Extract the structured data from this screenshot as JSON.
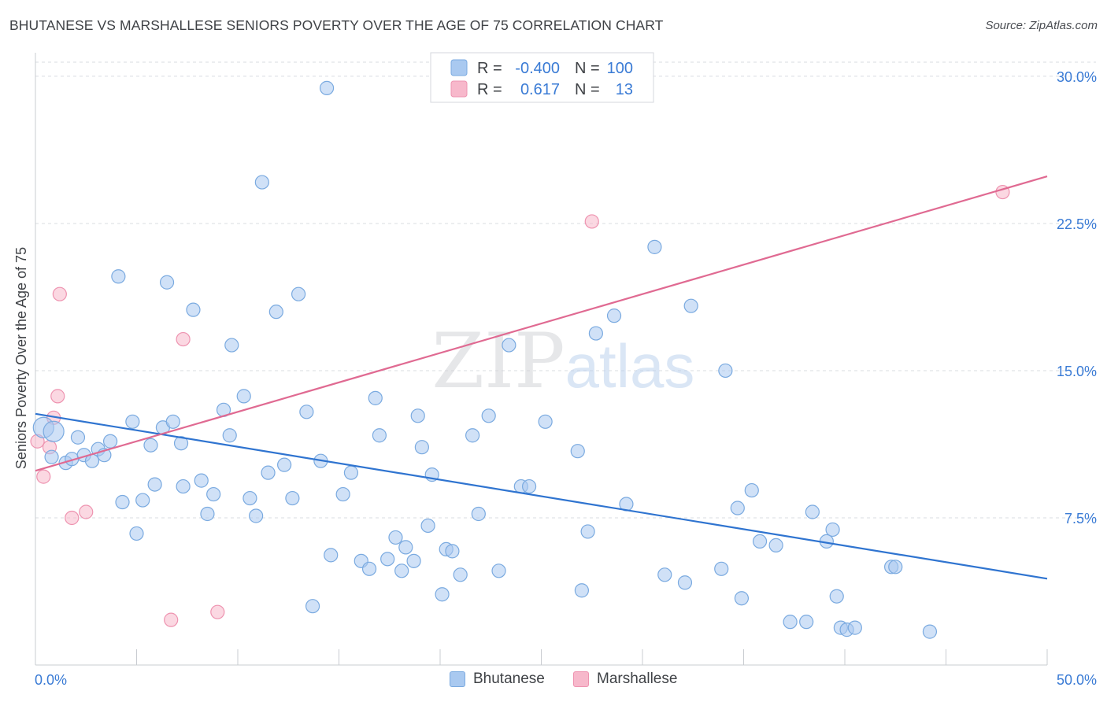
{
  "title": "BHUTANESE VS MARSHALLESE SENIORS POVERTY OVER THE AGE OF 75 CORRELATION CHART",
  "source": "Source: ZipAtlas.com",
  "watermark": {
    "part1": "ZIP",
    "part2": "atlas"
  },
  "colors": {
    "blue_fill": "#a9c9f0",
    "blue_stroke": "#7aaae0",
    "blue_line": "#2f74d0",
    "pink_fill": "#f7b8cb",
    "pink_stroke": "#ee93b0",
    "pink_line": "#e06a92",
    "tick_text": "#3a7bd5",
    "grid": "#d9dce1"
  },
  "stats_legend": {
    "r_label": "R =",
    "n_label": "N =",
    "rows": [
      {
        "series": "Bhutanese",
        "r": "-0.400",
        "n": "100"
      },
      {
        "series": "Marshallese",
        "r": "0.617",
        "n": "13"
      }
    ]
  },
  "chart_data": {
    "type": "scatter",
    "title": "BHUTANESE VS MARSHALLESE SENIORS POVERTY OVER THE AGE OF 75 CORRELATION CHART",
    "xlabel": "",
    "ylabel": "Seniors Poverty Over the Age of 75",
    "xlim": [
      0,
      50
    ],
    "ylim": [
      0,
      31.2
    ],
    "x_tick_labels": [
      "0.0%",
      "50.0%"
    ],
    "y_ticks": [
      7.5,
      15.0,
      22.5,
      30.0
    ],
    "y_tick_labels": [
      "7.5%",
      "15.0%",
      "22.5%",
      "30.0%"
    ],
    "grid": "horizontal dashed",
    "legend": "bottom-center",
    "series": [
      {
        "name": "Bhutanese",
        "trend": {
          "x": [
            0,
            50
          ],
          "y": [
            12.8,
            4.4
          ]
        },
        "points": [
          [
            0.4,
            12.1
          ],
          [
            0.9,
            11.9
          ],
          [
            0.8,
            10.6
          ],
          [
            1.5,
            10.3
          ],
          [
            1.8,
            10.5
          ],
          [
            2.1,
            11.6
          ],
          [
            2.4,
            10.7
          ],
          [
            2.8,
            10.4
          ],
          [
            3.1,
            11.0
          ],
          [
            3.4,
            10.7
          ],
          [
            3.7,
            11.4
          ],
          [
            4.1,
            19.8
          ],
          [
            4.3,
            8.3
          ],
          [
            4.8,
            12.4
          ],
          [
            5.0,
            6.7
          ],
          [
            5.3,
            8.4
          ],
          [
            5.7,
            11.2
          ],
          [
            5.9,
            9.2
          ],
          [
            6.3,
            12.1
          ],
          [
            6.5,
            19.5
          ],
          [
            6.8,
            12.4
          ],
          [
            7.2,
            11.3
          ],
          [
            7.3,
            9.1
          ],
          [
            7.8,
            18.1
          ],
          [
            8.2,
            9.4
          ],
          [
            8.5,
            7.7
          ],
          [
            8.8,
            8.7
          ],
          [
            9.3,
            13.0
          ],
          [
            9.6,
            11.7
          ],
          [
            9.7,
            16.3
          ],
          [
            10.3,
            13.7
          ],
          [
            10.6,
            8.5
          ],
          [
            10.9,
            7.6
          ],
          [
            11.2,
            24.6
          ],
          [
            11.5,
            9.8
          ],
          [
            11.9,
            18.0
          ],
          [
            12.3,
            10.2
          ],
          [
            12.7,
            8.5
          ],
          [
            13.0,
            18.9
          ],
          [
            13.4,
            12.9
          ],
          [
            13.7,
            3.0
          ],
          [
            14.1,
            10.4
          ],
          [
            14.4,
            29.4
          ],
          [
            14.6,
            5.6
          ],
          [
            15.2,
            8.7
          ],
          [
            15.6,
            9.8
          ],
          [
            16.1,
            5.3
          ],
          [
            16.5,
            4.9
          ],
          [
            16.8,
            13.6
          ],
          [
            17.0,
            11.7
          ],
          [
            17.4,
            5.4
          ],
          [
            17.8,
            6.5
          ],
          [
            18.1,
            4.8
          ],
          [
            18.3,
            6.0
          ],
          [
            18.7,
            5.3
          ],
          [
            18.9,
            12.7
          ],
          [
            19.1,
            11.1
          ],
          [
            19.4,
            7.1
          ],
          [
            19.6,
            9.7
          ],
          [
            20.1,
            3.6
          ],
          [
            20.3,
            5.9
          ],
          [
            20.6,
            5.8
          ],
          [
            21.0,
            4.6
          ],
          [
            21.6,
            11.7
          ],
          [
            21.9,
            7.7
          ],
          [
            22.4,
            12.7
          ],
          [
            22.9,
            4.8
          ],
          [
            23.4,
            16.3
          ],
          [
            24.0,
            9.1
          ],
          [
            24.4,
            9.1
          ],
          [
            25.2,
            12.4
          ],
          [
            26.8,
            10.9
          ],
          [
            27.0,
            3.8
          ],
          [
            27.3,
            6.8
          ],
          [
            27.7,
            16.9
          ],
          [
            28.6,
            17.8
          ],
          [
            29.2,
            8.2
          ],
          [
            30.6,
            21.3
          ],
          [
            31.1,
            4.6
          ],
          [
            32.1,
            4.2
          ],
          [
            32.4,
            18.3
          ],
          [
            33.9,
            4.9
          ],
          [
            34.1,
            15.0
          ],
          [
            34.7,
            8.0
          ],
          [
            34.9,
            3.4
          ],
          [
            35.4,
            8.9
          ],
          [
            35.8,
            6.3
          ],
          [
            36.6,
            6.1
          ],
          [
            37.3,
            2.2
          ],
          [
            38.1,
            2.2
          ],
          [
            38.4,
            7.8
          ],
          [
            39.1,
            6.3
          ],
          [
            39.4,
            6.9
          ],
          [
            39.6,
            3.5
          ],
          [
            39.8,
            1.9
          ],
          [
            40.1,
            1.8
          ],
          [
            40.5,
            1.9
          ],
          [
            42.3,
            5.0
          ],
          [
            42.5,
            5.0
          ],
          [
            44.2,
            1.7
          ]
        ]
      },
      {
        "name": "Marshallese",
        "trend": {
          "x": [
            0,
            50
          ],
          "y": [
            9.9,
            24.9
          ]
        },
        "points": [
          [
            0.1,
            11.4
          ],
          [
            0.4,
            9.6
          ],
          [
            0.7,
            11.1
          ],
          [
            0.9,
            12.6
          ],
          [
            1.1,
            13.7
          ],
          [
            1.2,
            18.9
          ],
          [
            1.8,
            7.5
          ],
          [
            2.5,
            7.8
          ],
          [
            6.7,
            2.3
          ],
          [
            7.3,
            16.6
          ],
          [
            9.0,
            2.7
          ],
          [
            27.5,
            22.6
          ],
          [
            47.8,
            24.1
          ]
        ]
      }
    ]
  },
  "bottom_legend": [
    {
      "label": "Bhutanese"
    },
    {
      "label": "Marshallese"
    }
  ]
}
